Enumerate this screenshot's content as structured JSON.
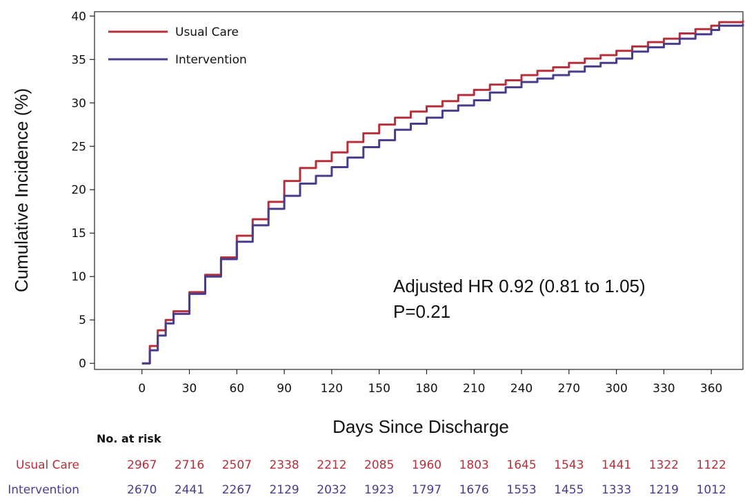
{
  "chart_data": {
    "type": "line",
    "title": "",
    "xlabel": "Days Since Discharge",
    "ylabel": "Cumulative Incidence (%)",
    "xlim": [
      -30,
      380
    ],
    "ylim": [
      -0.7,
      40.5
    ],
    "xticks": [
      0,
      30,
      60,
      90,
      120,
      150,
      180,
      210,
      240,
      270,
      300,
      330,
      360
    ],
    "yticks": [
      0,
      5,
      10,
      15,
      20,
      25,
      30,
      35,
      40
    ],
    "grid": false,
    "legend_position": "top-left",
    "series": [
      {
        "name": "Usual Care",
        "color": "#b5303a",
        "x": [
          0,
          5,
          10,
          15,
          20,
          30,
          40,
          50,
          60,
          70,
          80,
          90,
          100,
          110,
          120,
          130,
          140,
          150,
          160,
          170,
          180,
          190,
          200,
          210,
          220,
          230,
          240,
          250,
          260,
          270,
          280,
          290,
          300,
          310,
          320,
          330,
          340,
          350,
          360,
          365,
          380
        ],
        "y": [
          0,
          2.0,
          3.8,
          5.0,
          6.0,
          8.2,
          10.2,
          12.2,
          14.7,
          16.6,
          18.6,
          21.0,
          22.5,
          23.3,
          24.3,
          25.5,
          26.5,
          27.5,
          28.3,
          29.0,
          29.6,
          30.2,
          30.9,
          31.5,
          32.1,
          32.6,
          33.2,
          33.7,
          34.1,
          34.6,
          35.1,
          35.5,
          36.0,
          36.5,
          37.0,
          37.4,
          38.0,
          38.5,
          38.9,
          39.3,
          39.5
        ]
      },
      {
        "name": "Intervention",
        "color": "#4a3c8c",
        "x": [
          0,
          5,
          10,
          15,
          20,
          30,
          40,
          50,
          60,
          70,
          80,
          90,
          100,
          110,
          120,
          130,
          140,
          150,
          160,
          170,
          180,
          190,
          200,
          210,
          220,
          230,
          240,
          250,
          260,
          270,
          280,
          290,
          300,
          310,
          320,
          330,
          340,
          350,
          360,
          365,
          380
        ],
        "y": [
          0,
          1.5,
          3.2,
          4.6,
          5.7,
          8.0,
          10.0,
          12.0,
          14.0,
          15.9,
          17.8,
          19.3,
          20.7,
          21.6,
          22.6,
          23.7,
          24.9,
          25.7,
          26.9,
          27.6,
          28.3,
          29.1,
          29.7,
          30.3,
          31.2,
          31.8,
          32.4,
          32.8,
          33.2,
          33.6,
          34.2,
          34.6,
          35.1,
          35.9,
          36.4,
          36.8,
          37.4,
          37.9,
          38.4,
          38.9,
          39.1
        ]
      }
    ],
    "annotations": [
      "Adjusted HR 0.92 (0.81 to 1.05)",
      "P=0.21"
    ]
  },
  "legend": {
    "usual_care": "Usual Care",
    "intervention": "Intervention"
  },
  "risk_table": {
    "header": "No. at risk",
    "rows": [
      {
        "label": "Usual Care",
        "color": "#b5303a",
        "values": [
          "2967",
          "2716",
          "2507",
          "2338",
          "2212",
          "2085",
          "1960",
          "1803",
          "1645",
          "1543",
          "1441",
          "1322",
          "1122"
        ]
      },
      {
        "label": "Intervention",
        "color": "#4a3c8c",
        "values": [
          "2670",
          "2441",
          "2267",
          "2129",
          "2032",
          "1923",
          "1797",
          "1676",
          "1553",
          "1455",
          "1333",
          "1219",
          "1012"
        ]
      }
    ]
  }
}
